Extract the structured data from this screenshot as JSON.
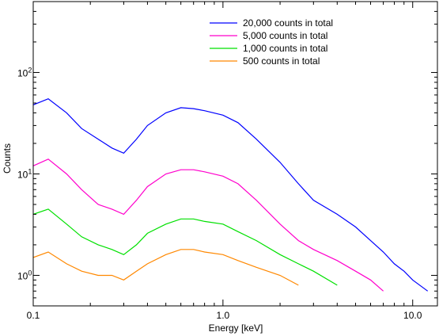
{
  "chart_data": {
    "type": "line",
    "xlabel": "Energy [keV]",
    "ylabel": "Counts",
    "xscale": "log",
    "yscale": "log",
    "xlim": [
      0.1,
      13.5
    ],
    "ylim": [
      0.5,
      500
    ],
    "x_ticks": [
      {
        "value": 0.1,
        "label": "0.1"
      },
      {
        "value": 1.0,
        "label": "1.0"
      },
      {
        "value": 10.0,
        "label": "10.0"
      }
    ],
    "y_ticks": [
      {
        "value": 1,
        "base": "10",
        "exp": "0"
      },
      {
        "value": 10,
        "base": "10",
        "exp": "1"
      },
      {
        "value": 100,
        "base": "10",
        "exp": "2"
      }
    ],
    "legend_position": "top-right",
    "series": [
      {
        "name": "20,000 counts in total",
        "color": "#0000ff",
        "x": [
          0.1,
          0.12,
          0.15,
          0.18,
          0.22,
          0.26,
          0.3,
          0.35,
          0.4,
          0.5,
          0.6,
          0.7,
          0.8,
          1.0,
          1.2,
          1.5,
          2.0,
          2.5,
          3.0,
          4.0,
          5.0,
          6.0,
          7.0,
          8.0,
          9.0,
          10.0,
          12.0
        ],
        "values": [
          48,
          55,
          40,
          28,
          22,
          18,
          16,
          22,
          30,
          40,
          45,
          44,
          42,
          38,
          32,
          22,
          13,
          8,
          5.5,
          4,
          3,
          2.2,
          1.7,
          1.3,
          1.1,
          0.9,
          0.7
        ]
      },
      {
        "name": "5,000 counts in total",
        "color": "#ff00cc",
        "x": [
          0.1,
          0.12,
          0.15,
          0.18,
          0.22,
          0.26,
          0.3,
          0.35,
          0.4,
          0.5,
          0.6,
          0.7,
          0.8,
          1.0,
          1.2,
          1.5,
          2.0,
          2.5,
          3.0,
          4.0,
          5.0,
          6.0,
          7.0
        ],
        "values": [
          12,
          14,
          10,
          7,
          5,
          4.5,
          4,
          5.5,
          7.5,
          10,
          11,
          11,
          10.5,
          9.5,
          8,
          5.5,
          3.2,
          2.2,
          1.8,
          1.4,
          1.1,
          0.9,
          0.7
        ]
      },
      {
        "name": "1,000 counts in total",
        "color": "#00e000",
        "x": [
          0.1,
          0.12,
          0.15,
          0.18,
          0.22,
          0.26,
          0.3,
          0.35,
          0.4,
          0.5,
          0.6,
          0.7,
          0.8,
          1.0,
          1.2,
          1.5,
          2.0,
          2.5,
          3.0,
          4.0
        ],
        "values": [
          4,
          4.5,
          3.2,
          2.4,
          2,
          1.8,
          1.6,
          2,
          2.6,
          3.2,
          3.6,
          3.6,
          3.4,
          3.2,
          2.7,
          2.2,
          1.6,
          1.3,
          1.1,
          0.8
        ]
      },
      {
        "name": "500 counts in total",
        "color": "#ff8800",
        "x": [
          0.1,
          0.12,
          0.15,
          0.18,
          0.22,
          0.26,
          0.3,
          0.35,
          0.4,
          0.5,
          0.6,
          0.7,
          0.8,
          1.0,
          1.2,
          1.5,
          2.0,
          2.5
        ],
        "values": [
          1.5,
          1.7,
          1.3,
          1.1,
          1,
          1,
          0.9,
          1.1,
          1.3,
          1.6,
          1.8,
          1.8,
          1.7,
          1.6,
          1.4,
          1.2,
          1,
          0.8
        ]
      }
    ]
  }
}
